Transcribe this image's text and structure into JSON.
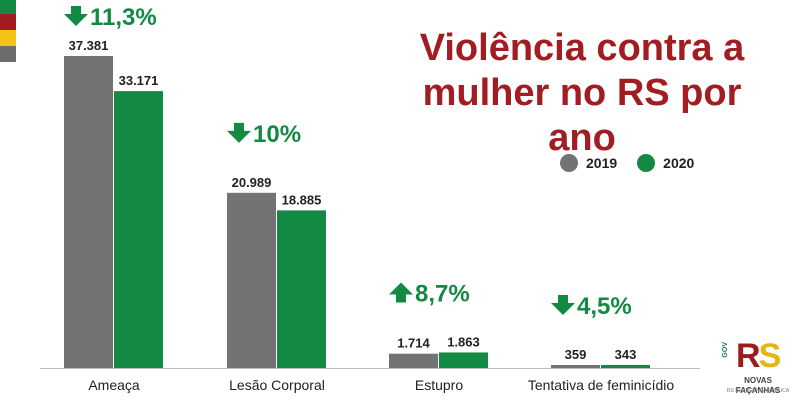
{
  "colors": {
    "series_2019": "#737373",
    "series_2020": "#138a43",
    "title": "#a11d21",
    "change": "#138a43",
    "flag_green": "#138a43",
    "flag_red": "#a11d21",
    "flag_yellow": "#f2c316",
    "flag_gray": "#6d6d6d"
  },
  "title": "Violência contra a mulher no RS por ano",
  "legend": [
    {
      "label": "2019",
      "color": "#737373"
    },
    {
      "label": "2020",
      "color": "#138a43"
    }
  ],
  "logo": {
    "text_r": "R",
    "text_s": "S",
    "gov": "GOV",
    "subtitle": "NOVAS FAÇANHAS",
    "subtitle2": "RS SEGURANÇA PÚBLICA"
  },
  "chart_data": {
    "type": "bar",
    "title": "Violência contra a mulher no RS por ano",
    "categories": [
      "Ameaça",
      "Lesão Corporal",
      "Estupro",
      "Tentativa de feminicídio"
    ],
    "series": [
      {
        "name": "2019",
        "values": [
          37381,
          20989,
          1714,
          359
        ],
        "labels": [
          "37.381",
          "20.989",
          "1.714",
          "359"
        ]
      },
      {
        "name": "2020",
        "values": [
          33171,
          18885,
          1863,
          343
        ],
        "labels": [
          "33.171",
          "18.885",
          "1.863",
          "343"
        ]
      }
    ],
    "changes": [
      {
        "direction": "down",
        "label": "11,3%"
      },
      {
        "direction": "down",
        "label": "10%"
      },
      {
        "direction": "up",
        "label": "8,7%"
      },
      {
        "direction": "down",
        "label": "4,5%"
      }
    ],
    "ylim": [
      0,
      37381
    ],
    "grid": false,
    "legend_position": "right"
  }
}
